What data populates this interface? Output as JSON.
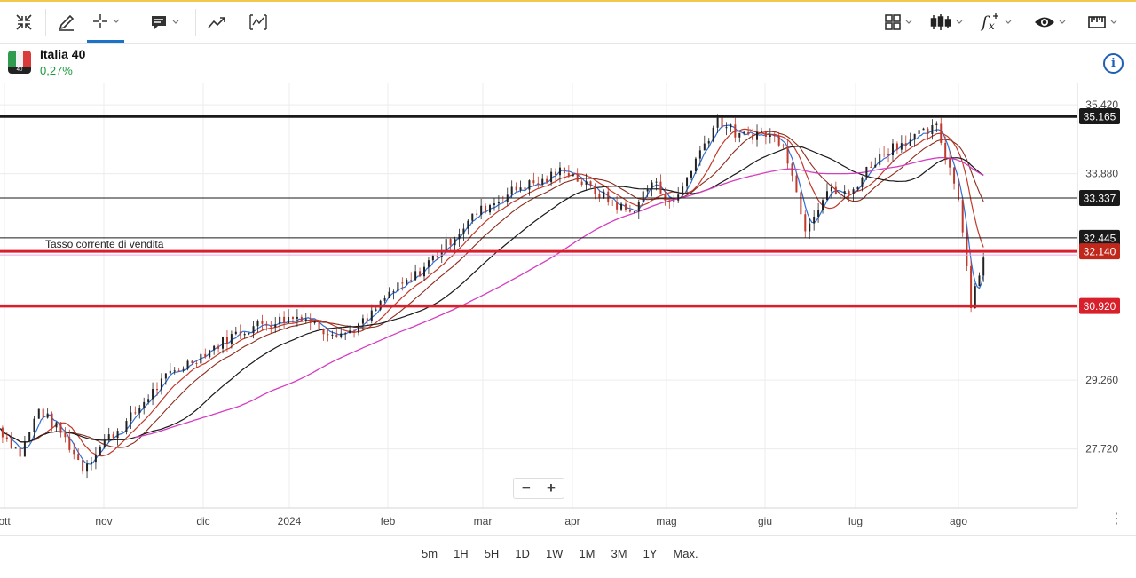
{
  "colors": {
    "accent": "#1a73c8",
    "top_line": "#f2c94c",
    "positive": "#1a9a3a",
    "support_resistance": "#d7202b",
    "ma_blue": "#2f6fd6",
    "ma_red": "#c0392b",
    "ma_darkred": "#8b2d1f",
    "ma_black": "#1a1a1a",
    "ma_magenta": "#d43ec0"
  },
  "toolbar": {
    "left_icons": [
      "fullscreen-icon",
      "pencil-icon",
      "crosshair-icon",
      "comment-icon",
      "trendline-icon",
      "chart-type-icon"
    ],
    "right_icons": [
      "layout-icon",
      "candlestick-icon",
      "indicators-icon",
      "eye-icon",
      "ruler-icon"
    ]
  },
  "instrument": {
    "name": "Italia 40",
    "change": "0,27%",
    "flag_label": "40"
  },
  "chart_data": {
    "type": "line",
    "title": "",
    "xlabel": "",
    "ylabel": "",
    "ylim": [
      26400,
      35900
    ],
    "x_ticks": [
      "ott",
      "nov",
      "dic",
      "2024",
      "feb",
      "mar",
      "apr",
      "mag",
      "giu",
      "lug",
      "ago"
    ],
    "y_ticks": [
      "35.420",
      "33.880",
      "29.260",
      "27.720"
    ],
    "y_tick_values": [
      35420,
      33880,
      29260,
      27720
    ],
    "grid": true,
    "horizontal_levels": [
      {
        "label": "35.165",
        "value": 35165,
        "style": "black-thick"
      },
      {
        "label": "33.337",
        "value": 33337,
        "style": "black-thin"
      },
      {
        "label": "32.445",
        "value": 32445,
        "style": "black-thin"
      },
      {
        "label": "32.140",
        "value": 32140,
        "style": "red-current"
      },
      {
        "label": "30.920",
        "value": 30920,
        "style": "red-thick"
      }
    ],
    "annotation": "Tasso corrente di vendita",
    "price_series": {
      "x": [
        "2023-09-29",
        "2023-10-06",
        "2023-10-12",
        "2023-10-19",
        "2023-10-26",
        "2023-11-02",
        "2023-11-09",
        "2023-11-16",
        "2023-11-23",
        "2023-11-30",
        "2023-12-07",
        "2023-12-14",
        "2023-12-21",
        "2024-01-04",
        "2024-01-11",
        "2024-01-18",
        "2024-01-25",
        "2024-02-01",
        "2024-02-08",
        "2024-02-15",
        "2024-02-22",
        "2024-02-29",
        "2024-03-07",
        "2024-03-14",
        "2024-03-21",
        "2024-03-28",
        "2024-04-04",
        "2024-04-11",
        "2024-04-18",
        "2024-04-25",
        "2024-05-02",
        "2024-05-09",
        "2024-05-16",
        "2024-05-23",
        "2024-05-30",
        "2024-06-06",
        "2024-06-13",
        "2024-06-20",
        "2024-06-27",
        "2024-07-04",
        "2024-07-11",
        "2024-07-18",
        "2024-07-25",
        "2024-08-01",
        "2024-08-05",
        "2024-08-09"
      ],
      "values": [
        28200,
        27600,
        28600,
        28100,
        27300,
        27900,
        28300,
        28900,
        29400,
        29700,
        30000,
        30300,
        30500,
        30700,
        30400,
        30300,
        30600,
        31200,
        31500,
        32000,
        32500,
        33000,
        33300,
        33600,
        33700,
        34000,
        33600,
        33300,
        33000,
        33700,
        33200,
        34200,
        35100,
        34700,
        34800,
        34600,
        32700,
        33500,
        33400,
        34100,
        34500,
        34700,
        34900,
        33400,
        31000,
        32000
      ]
    },
    "series": [
      {
        "values_end": 33100,
        "color": "ma_blue"
      },
      {
        "values_end": 32700,
        "color": "ma_red"
      },
      {
        "values_end": 33500,
        "color": "ma_darkred"
      },
      {
        "values_end": 33700,
        "color": "ma_black"
      },
      {
        "values_end": 33900,
        "color": "ma_magenta"
      }
    ]
  },
  "zoom": {
    "minus": "−",
    "plus": "+"
  },
  "ranges": [
    "5m",
    "1H",
    "5H",
    "1D",
    "1W",
    "1M",
    "3M",
    "1Y",
    "Max."
  ]
}
